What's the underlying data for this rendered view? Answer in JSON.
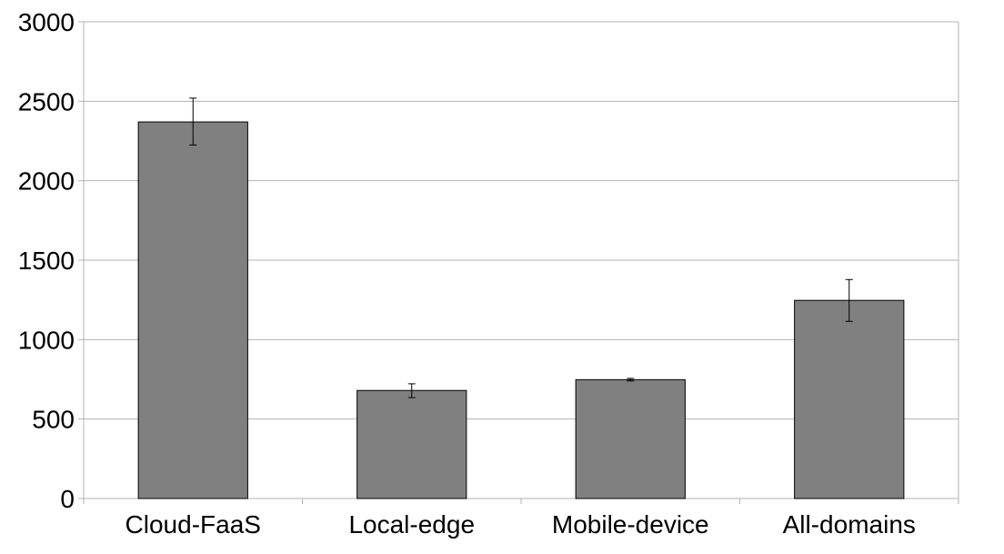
{
  "chart_data": {
    "type": "bar",
    "title": "",
    "xlabel": "",
    "ylabel": "",
    "categories": [
      "Cloud-FaaS",
      "Local-edge",
      "Mobile-device",
      "All-domains"
    ],
    "values": [
      2370,
      680,
      748,
      1247
    ],
    "error_bars": [
      {
        "low": 2225,
        "high": 2520
      },
      {
        "low": 635,
        "high": 722
      },
      {
        "low": 740,
        "high": 756
      },
      {
        "low": 1115,
        "high": 1378
      }
    ],
    "ylim": [
      0,
      3000
    ],
    "yticks": [
      "0",
      "500",
      "1000",
      "1500",
      "2000",
      "2500",
      "3000"
    ],
    "grid": true,
    "bar_color": "#808080",
    "legend": "none"
  }
}
